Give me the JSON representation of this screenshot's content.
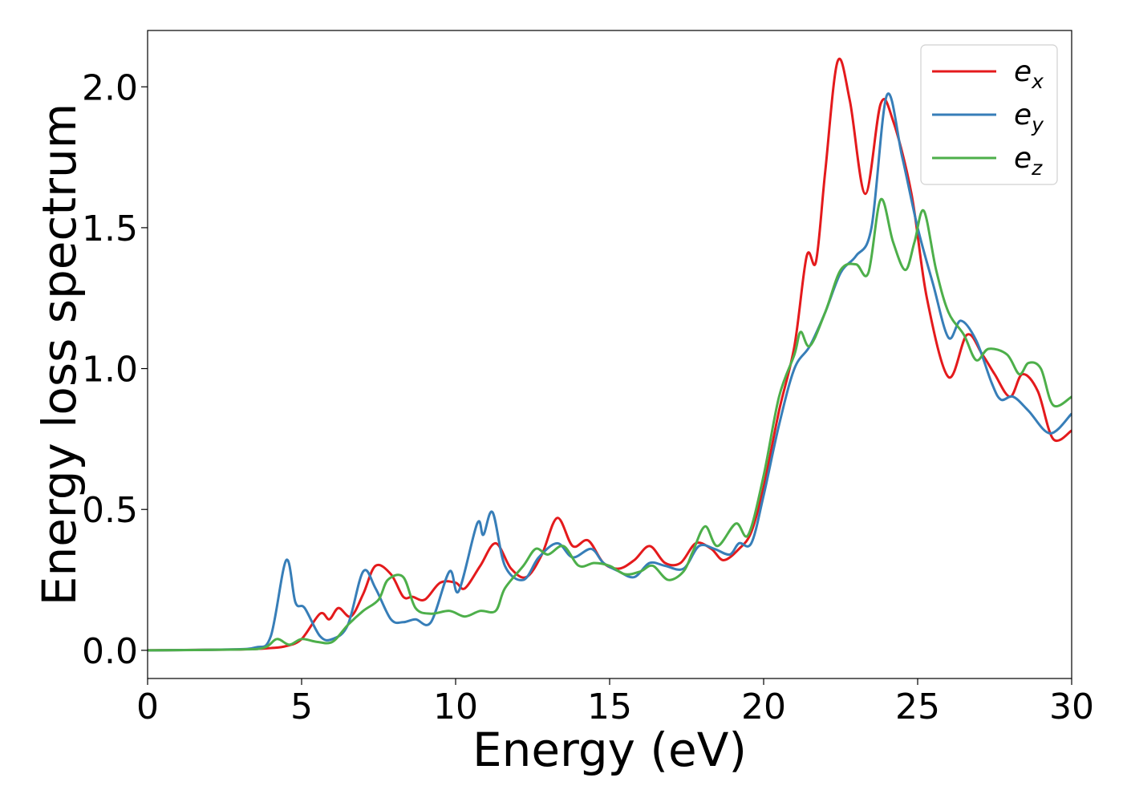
{
  "chart_data": {
    "type": "line",
    "title": "",
    "xlabel": "Energy (eV)",
    "ylabel": "Energy loss spectrum",
    "xlim": [
      0,
      30
    ],
    "ylim": [
      -0.1,
      2.2
    ],
    "xticks": [
      "0",
      "5",
      "10",
      "15",
      "20",
      "25",
      "30"
    ],
    "yticks": [
      "0.0",
      "0.5",
      "1.0",
      "1.5",
      "2.0"
    ],
    "xtick_values": [
      0,
      5,
      10,
      15,
      20,
      25,
      30
    ],
    "ytick_values": [
      0.0,
      0.5,
      1.0,
      1.5,
      2.0
    ],
    "grid": false,
    "legend_position": "top-right",
    "series": [
      {
        "name": "e_x",
        "label_base": "e",
        "label_sub": "x",
        "color": "#e41a1c",
        "points": [
          [
            0,
            0
          ],
          [
            3,
            0.003
          ],
          [
            4,
            0.008
          ],
          [
            4.5,
            0.015
          ],
          [
            5,
            0.04
          ],
          [
            5.6,
            0.13
          ],
          [
            5.9,
            0.11
          ],
          [
            6.2,
            0.15
          ],
          [
            6.6,
            0.12
          ],
          [
            7,
            0.2
          ],
          [
            7.4,
            0.3
          ],
          [
            7.9,
            0.27
          ],
          [
            8.3,
            0.19
          ],
          [
            8.6,
            0.19
          ],
          [
            9,
            0.18
          ],
          [
            9.5,
            0.24
          ],
          [
            10,
            0.24
          ],
          [
            10.3,
            0.22
          ],
          [
            10.8,
            0.3
          ],
          [
            11.3,
            0.38
          ],
          [
            11.8,
            0.29
          ],
          [
            12.3,
            0.26
          ],
          [
            12.8,
            0.34
          ],
          [
            13.3,
            0.47
          ],
          [
            13.8,
            0.37
          ],
          [
            14.3,
            0.39
          ],
          [
            14.8,
            0.31
          ],
          [
            15.3,
            0.29
          ],
          [
            15.8,
            0.32
          ],
          [
            16.3,
            0.37
          ],
          [
            16.8,
            0.31
          ],
          [
            17.3,
            0.31
          ],
          [
            17.8,
            0.38
          ],
          [
            18.3,
            0.36
          ],
          [
            18.7,
            0.32
          ],
          [
            19.2,
            0.36
          ],
          [
            19.6,
            0.42
          ],
          [
            20,
            0.58
          ],
          [
            20.5,
            0.85
          ],
          [
            21,
            1.08
          ],
          [
            21.4,
            1.4
          ],
          [
            21.7,
            1.38
          ],
          [
            22,
            1.7
          ],
          [
            22.4,
            2.09
          ],
          [
            22.8,
            1.95
          ],
          [
            23.3,
            1.62
          ],
          [
            23.8,
            1.94
          ],
          [
            24.2,
            1.88
          ],
          [
            24.8,
            1.62
          ],
          [
            25.3,
            1.25
          ],
          [
            26,
            0.97
          ],
          [
            26.6,
            1.12
          ],
          [
            27.1,
            1.05
          ],
          [
            27.5,
            0.98
          ],
          [
            28,
            0.9
          ],
          [
            28.4,
            0.98
          ],
          [
            28.9,
            0.92
          ],
          [
            29.4,
            0.75
          ],
          [
            30,
            0.78
          ]
        ]
      },
      {
        "name": "e_y",
        "label_base": "e",
        "label_sub": "y",
        "color": "#377eb8",
        "points": [
          [
            0,
            0
          ],
          [
            2.5,
            0.003
          ],
          [
            3.5,
            0.01
          ],
          [
            4,
            0.05
          ],
          [
            4.5,
            0.32
          ],
          [
            4.8,
            0.17
          ],
          [
            5.1,
            0.15
          ],
          [
            5.6,
            0.05
          ],
          [
            6,
            0.04
          ],
          [
            6.5,
            0.09
          ],
          [
            7,
            0.28
          ],
          [
            7.4,
            0.22
          ],
          [
            7.9,
            0.11
          ],
          [
            8.3,
            0.1
          ],
          [
            8.7,
            0.11
          ],
          [
            9.2,
            0.1
          ],
          [
            9.8,
            0.28
          ],
          [
            10.1,
            0.21
          ],
          [
            10.7,
            0.45
          ],
          [
            10.9,
            0.41
          ],
          [
            11.2,
            0.49
          ],
          [
            11.6,
            0.3
          ],
          [
            12.2,
            0.25
          ],
          [
            12.7,
            0.33
          ],
          [
            13.3,
            0.38
          ],
          [
            13.8,
            0.33
          ],
          [
            14.4,
            0.36
          ],
          [
            14.8,
            0.31
          ],
          [
            15.3,
            0.28
          ],
          [
            15.8,
            0.26
          ],
          [
            16.3,
            0.31
          ],
          [
            16.8,
            0.3
          ],
          [
            17.4,
            0.29
          ],
          [
            17.9,
            0.37
          ],
          [
            18.4,
            0.36
          ],
          [
            18.9,
            0.34
          ],
          [
            19.2,
            0.38
          ],
          [
            19.6,
            0.38
          ],
          [
            20,
            0.55
          ],
          [
            20.5,
            0.8
          ],
          [
            21,
            1.0
          ],
          [
            21.5,
            1.08
          ],
          [
            22,
            1.2
          ],
          [
            22.5,
            1.34
          ],
          [
            23,
            1.4
          ],
          [
            23.5,
            1.5
          ],
          [
            24,
            1.97
          ],
          [
            24.5,
            1.75
          ],
          [
            25,
            1.5
          ],
          [
            25.5,
            1.3
          ],
          [
            26,
            1.11
          ],
          [
            26.4,
            1.17
          ],
          [
            26.9,
            1.1
          ],
          [
            27.4,
            0.95
          ],
          [
            27.7,
            0.89
          ],
          [
            28.1,
            0.9
          ],
          [
            28.6,
            0.85
          ],
          [
            29.3,
            0.77
          ],
          [
            30,
            0.84
          ]
        ]
      },
      {
        "name": "e_z",
        "label_base": "e",
        "label_sub": "z",
        "color": "#4daf4a",
        "points": [
          [
            0,
            0
          ],
          [
            3,
            0.003
          ],
          [
            3.8,
            0.01
          ],
          [
            4.2,
            0.04
          ],
          [
            4.6,
            0.02
          ],
          [
            5,
            0.04
          ],
          [
            5.5,
            0.03
          ],
          [
            6,
            0.03
          ],
          [
            6.5,
            0.09
          ],
          [
            7,
            0.14
          ],
          [
            7.5,
            0.18
          ],
          [
            7.8,
            0.25
          ],
          [
            8.3,
            0.26
          ],
          [
            8.7,
            0.15
          ],
          [
            9.2,
            0.13
          ],
          [
            9.8,
            0.14
          ],
          [
            10.3,
            0.12
          ],
          [
            10.8,
            0.14
          ],
          [
            11.3,
            0.14
          ],
          [
            11.6,
            0.22
          ],
          [
            12.2,
            0.3
          ],
          [
            12.6,
            0.36
          ],
          [
            13,
            0.34
          ],
          [
            13.5,
            0.37
          ],
          [
            14,
            0.3
          ],
          [
            14.5,
            0.31
          ],
          [
            15,
            0.3
          ],
          [
            15.5,
            0.27
          ],
          [
            16,
            0.28
          ],
          [
            16.4,
            0.3
          ],
          [
            16.9,
            0.25
          ],
          [
            17.4,
            0.28
          ],
          [
            17.7,
            0.35
          ],
          [
            18.1,
            0.44
          ],
          [
            18.5,
            0.37
          ],
          [
            19.1,
            0.45
          ],
          [
            19.5,
            0.41
          ],
          [
            20,
            0.62
          ],
          [
            20.5,
            0.9
          ],
          [
            21,
            1.05
          ],
          [
            21.2,
            1.13
          ],
          [
            21.5,
            1.08
          ],
          [
            22,
            1.2
          ],
          [
            22.5,
            1.35
          ],
          [
            23,
            1.37
          ],
          [
            23.4,
            1.34
          ],
          [
            23.8,
            1.6
          ],
          [
            24.2,
            1.45
          ],
          [
            24.6,
            1.35
          ],
          [
            24.9,
            1.45
          ],
          [
            25.2,
            1.56
          ],
          [
            25.6,
            1.35
          ],
          [
            26,
            1.2
          ],
          [
            26.5,
            1.12
          ],
          [
            26.9,
            1.03
          ],
          [
            27.3,
            1.07
          ],
          [
            27.9,
            1.05
          ],
          [
            28.3,
            0.98
          ],
          [
            28.6,
            1.02
          ],
          [
            29,
            1.0
          ],
          [
            29.4,
            0.87
          ],
          [
            30,
            0.9
          ]
        ]
      }
    ]
  }
}
